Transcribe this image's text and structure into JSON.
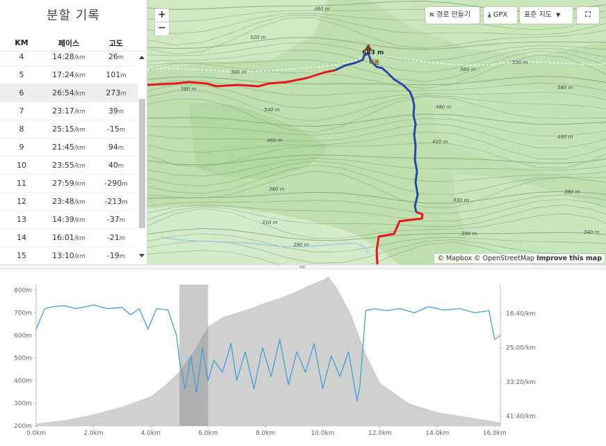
{
  "splits": {
    "title": "분할 기록",
    "headers": {
      "km": "KM",
      "pace": "페이스",
      "elev": "고도"
    },
    "pace_unit": "/km",
    "elev_unit": "m",
    "rows": [
      {
        "km": "4",
        "pace": "14:28",
        "elev": "26"
      },
      {
        "km": "5",
        "pace": "17:24",
        "elev": "101"
      },
      {
        "km": "6",
        "pace": "26:54",
        "elev": "273"
      },
      {
        "km": "7",
        "pace": "23:17",
        "elev": "39"
      },
      {
        "km": "8",
        "pace": "25:15",
        "elev": "-15"
      },
      {
        "km": "9",
        "pace": "21:45",
        "elev": "94"
      },
      {
        "km": "10",
        "pace": "23:55",
        "elev": "40"
      },
      {
        "km": "11",
        "pace": "27:59",
        "elev": "-290"
      },
      {
        "km": "12",
        "pace": "23:48",
        "elev": "-213"
      },
      {
        "km": "13",
        "pace": "14:39",
        "elev": "-37"
      },
      {
        "km": "14",
        "pace": "16:01",
        "elev": "-21"
      },
      {
        "km": "15",
        "pace": "13:10",
        "elev": "-19"
      }
    ],
    "highlighted_km": "6"
  },
  "map": {
    "zoom_in": "+",
    "zoom_out": "−",
    "route_builder": "경로 만들기",
    "gpx": "GPX",
    "map_type": "표준 지도",
    "fullscreen": "⛶",
    "attribution_1": "© Mapbox © OpenStreetMap",
    "attribution_2": "Improve this map",
    "peak_elev": "683 m",
    "peak_name": "비봉",
    "contour_labels": [
      "460 m",
      "520 m",
      "590 m",
      "580 m",
      "560 m",
      "530 m",
      "580 m",
      "540 m",
      "480 m",
      "460 m",
      "410 m",
      "490 m",
      "380 m",
      "330 m",
      "380 m",
      "310 m",
      "290 m",
      "290 m",
      "340 m"
    ],
    "colors": {
      "route_red": "#e8141e",
      "route_blue": "#2846a8"
    }
  },
  "chart_data": {
    "type": "area",
    "x_ticks": [
      "0.0km",
      "2.0km",
      "4.0km",
      "6.0km",
      "8.0km",
      "10.0km",
      "12.0km",
      "14.0km",
      "16.0km"
    ],
    "x_range_km": [
      0,
      16.2
    ],
    "left_axis_ticks": [
      "800m",
      "700m",
      "600m",
      "500m",
      "400m",
      "300m",
      "200m"
    ],
    "left_range_m": [
      200,
      800
    ],
    "right_axis_ticks": [
      "16:40/km",
      "25:00/km",
      "33:20/km",
      "41:40/km"
    ],
    "elevation_series": {
      "name": "elevation",
      "color": "#c8c8c8",
      "km": [
        0,
        1,
        2,
        3,
        4,
        4.5,
        5,
        5.5,
        6,
        6.5,
        7,
        7.5,
        8,
        8.5,
        9,
        9.5,
        10,
        10.2,
        10.5,
        11,
        11.5,
        12,
        13,
        14,
        15,
        16,
        16.2
      ],
      "m": [
        210,
        225,
        250,
        285,
        330,
        380,
        440,
        530,
        640,
        680,
        700,
        720,
        745,
        765,
        790,
        820,
        845,
        860,
        810,
        690,
        520,
        390,
        300,
        260,
        240,
        220,
        215
      ]
    },
    "pace_series": {
      "name": "pace",
      "color": "#3fa0d8",
      "note_units": "minutes per km",
      "km": [
        0,
        0.3,
        0.6,
        1,
        1.4,
        2,
        2.5,
        3,
        3.3,
        3.6,
        3.9,
        4.2,
        4.6,
        4.9,
        5.0,
        5.2,
        5.4,
        5.6,
        5.8,
        6.0,
        6.2,
        6.5,
        6.8,
        7.0,
        7.3,
        7.6,
        7.9,
        8.2,
        8.5,
        8.8,
        9.1,
        9.4,
        9.7,
        10.0,
        10.3,
        10.6,
        10.9,
        11.2,
        11.3,
        11.5,
        11.8,
        12.2,
        12.7,
        13.2,
        13.7,
        14.2,
        14.8,
        15.3,
        15.8,
        16.0,
        16.2
      ],
      "pace": [
        20.5,
        15.5,
        15,
        14.8,
        15.5,
        14.6,
        15.5,
        15.2,
        17,
        15.5,
        20.5,
        15.5,
        15.8,
        22,
        28,
        35,
        27,
        36,
        25,
        33,
        28,
        31,
        24,
        33,
        26,
        35,
        25,
        32,
        23,
        34,
        26,
        31,
        24,
        35,
        27,
        32,
        26,
        38,
        34,
        16,
        15.5,
        16,
        15.5,
        16.5,
        15,
        15.8,
        15.5,
        16.5,
        16,
        23,
        22
      ],
      "right_range": [
        11,
        44
      ]
    },
    "highlight_km": [
      5.0,
      6.0
    ]
  }
}
